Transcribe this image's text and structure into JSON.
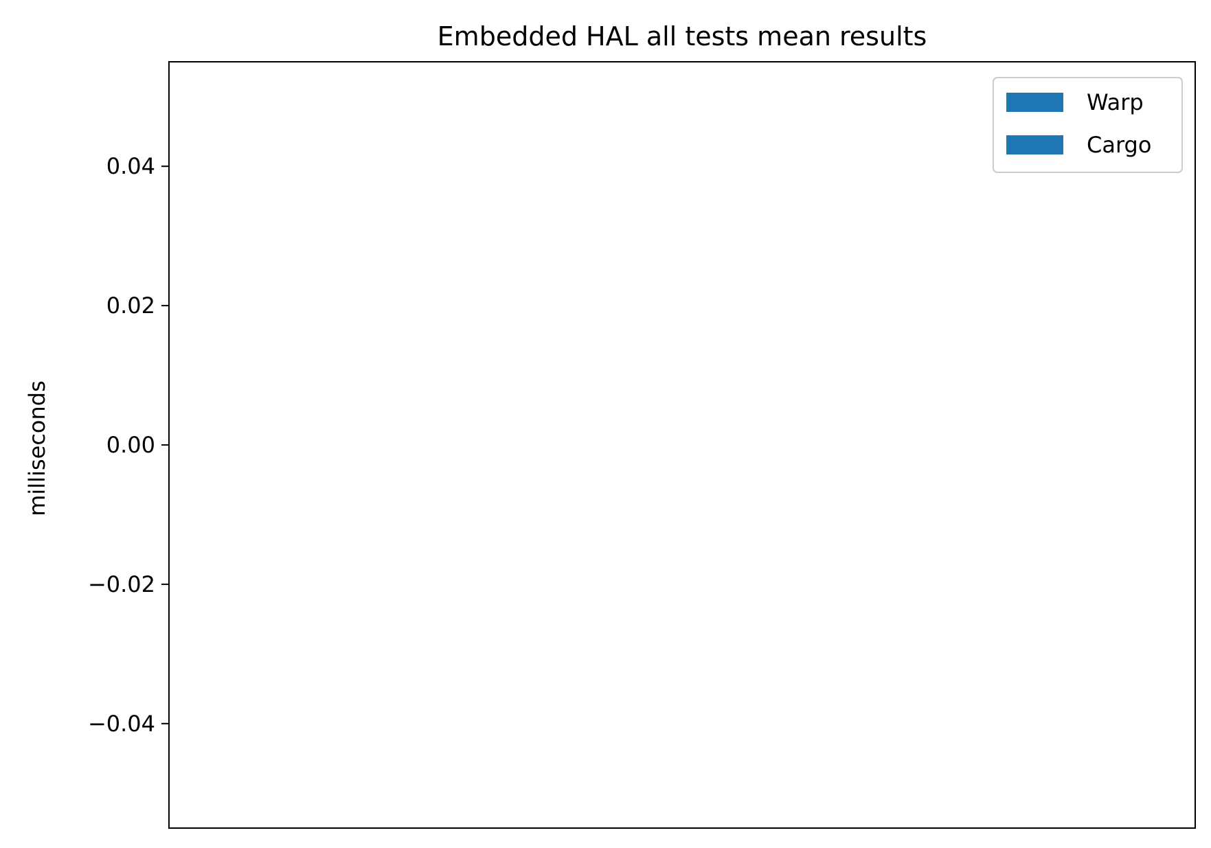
{
  "chart_data": {
    "type": "bar",
    "title": "Embedded HAL all tests mean results",
    "xlabel": "",
    "ylabel": "milliseconds",
    "categories": [],
    "series": [
      {
        "name": "Warp",
        "values": [],
        "color": "#1f77b4"
      },
      {
        "name": "Cargo",
        "values": [],
        "color": "#1f77b4"
      }
    ],
    "ylim": [
      -0.055,
      0.055
    ],
    "yticks": [
      {
        "value": 0.04,
        "label": "0.04"
      },
      {
        "value": 0.02,
        "label": "0.02"
      },
      {
        "value": 0.0,
        "label": "0.00"
      },
      {
        "value": -0.02,
        "label": "−0.02"
      },
      {
        "value": -0.04,
        "label": "−0.04"
      }
    ],
    "grid": false,
    "legend_position": "top-right"
  }
}
